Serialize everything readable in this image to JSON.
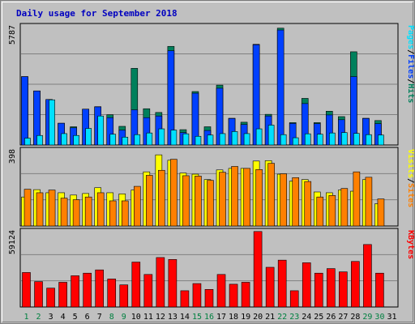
{
  "chart_title": "Daily usage for September 2018",
  "colors": {
    "background": "#c0c0c0",
    "panel": "#c0c0c0",
    "grid": "#808080",
    "hits": "#00805c",
    "files": "#0040ff",
    "pages": "#00e0ff",
    "visits": "#ffff00",
    "sites": "#ff8000",
    "kbytes": "#ff0000",
    "weekday": "#000000",
    "weekend": "#008040"
  },
  "chart_data": [
    {
      "type": "bar",
      "panel": "top",
      "ymax_label": "5787",
      "ylim": [
        0,
        5787
      ],
      "categories": [
        "1",
        "2",
        "3",
        "4",
        "5",
        "6",
        "7",
        "8",
        "9",
        "10",
        "11",
        "12",
        "13",
        "14",
        "15",
        "16",
        "17",
        "18",
        "19",
        "20",
        "21",
        "22",
        "23",
        "24",
        "25",
        "26",
        "27",
        "28",
        "29",
        "30",
        "31"
      ],
      "series": [
        {
          "name": "Hits",
          "values": [
            3300,
            2610,
            2150,
            1050,
            880,
            1730,
            1850,
            1460,
            900,
            3700,
            1750,
            1570,
            4760,
            740,
            2580,
            880,
            2890,
            1290,
            1100,
            4860,
            1480,
            5640,
            1080,
            2250,
            1080,
            1630,
            1370,
            4500,
            1290,
            1180,
            0
          ]
        },
        {
          "name": "Files",
          "values": [
            3300,
            2610,
            2200,
            1050,
            830,
            1730,
            1840,
            1320,
            720,
            1700,
            1320,
            1400,
            4550,
            600,
            2500,
            700,
            2740,
            1280,
            990,
            4840,
            1400,
            5550,
            1040,
            2000,
            1030,
            1450,
            1220,
            3300,
            1280,
            1030,
            0
          ]
        },
        {
          "name": "Pages",
          "values": [
            330,
            460,
            2180,
            550,
            460,
            800,
            1400,
            520,
            380,
            500,
            580,
            780,
            720,
            540,
            420,
            480,
            550,
            650,
            550,
            780,
            960,
            500,
            350,
            540,
            520,
            580,
            600,
            560,
            500,
            480,
            0
          ]
        }
      ],
      "legend": [
        {
          "label": "Hits",
          "sep": "/"
        },
        {
          "label": "Files",
          "sep": "/"
        },
        {
          "label": "Pages",
          "sep": ""
        }
      ]
    },
    {
      "type": "bar",
      "panel": "middle",
      "ymax_label": "398",
      "ylim": [
        0,
        398
      ],
      "categories": [
        "1",
        "2",
        "3",
        "4",
        "5",
        "6",
        "7",
        "8",
        "9",
        "10",
        "11",
        "12",
        "13",
        "14",
        "15",
        "16",
        "17",
        "18",
        "19",
        "20",
        "21",
        "22",
        "23",
        "24",
        "25",
        "26",
        "27",
        "28",
        "29",
        "30",
        "31"
      ],
      "series": [
        {
          "name": "Visits",
          "values": [
            150,
            188,
            172,
            172,
            160,
            168,
            198,
            172,
            166,
            186,
            280,
            368,
            340,
            274,
            268,
            240,
            290,
            298,
            298,
            336,
            338,
            268,
            232,
            240,
            176,
            172,
            186,
            180,
            240,
            115,
            0
          ]
        },
        {
          "name": "Sites",
          "values": [
            190,
            172,
            186,
            144,
            136,
            150,
            172,
            130,
            130,
            205,
            262,
            288,
            345,
            260,
            258,
            236,
            278,
            308,
            298,
            292,
            324,
            270,
            250,
            230,
            150,
            158,
            194,
            280,
            252,
            140,
            0
          ]
        }
      ],
      "legend": [
        {
          "label": "Sites",
          "sep": "/"
        },
        {
          "label": "Visits",
          "sep": ""
        }
      ]
    },
    {
      "type": "bar",
      "panel": "bottom",
      "ymax_label": "59124",
      "ylim": [
        0,
        59124
      ],
      "categories": [
        "1",
        "2",
        "3",
        "4",
        "5",
        "6",
        "7",
        "8",
        "9",
        "10",
        "11",
        "12",
        "13",
        "14",
        "15",
        "16",
        "17",
        "18",
        "19",
        "20",
        "21",
        "22",
        "23",
        "24",
        "25",
        "26",
        "27",
        "28",
        "29",
        "30",
        "31"
      ],
      "series": [
        {
          "name": "KBytes",
          "values": [
            26500,
            19500,
            14500,
            19000,
            24000,
            26000,
            28500,
            21500,
            17000,
            34500,
            25000,
            38000,
            36500,
            12500,
            18000,
            13500,
            25000,
            17500,
            19000,
            58000,
            30500,
            36000,
            12500,
            34000,
            26000,
            29500,
            27000,
            35000,
            48000,
            26000,
            0
          ]
        }
      ],
      "legend": [
        {
          "label": "KBytes",
          "sep": ""
        }
      ]
    }
  ],
  "x_labels": [
    {
      "label": "1",
      "weekend": true
    },
    {
      "label": "2",
      "weekend": true
    },
    {
      "label": "3",
      "weekend": false
    },
    {
      "label": "4",
      "weekend": false
    },
    {
      "label": "5",
      "weekend": false
    },
    {
      "label": "6",
      "weekend": false
    },
    {
      "label": "7",
      "weekend": false
    },
    {
      "label": "8",
      "weekend": true
    },
    {
      "label": "9",
      "weekend": true
    },
    {
      "label": "10",
      "weekend": false
    },
    {
      "label": "11",
      "weekend": false
    },
    {
      "label": "12",
      "weekend": false
    },
    {
      "label": "13",
      "weekend": false
    },
    {
      "label": "14",
      "weekend": false
    },
    {
      "label": "15",
      "weekend": true
    },
    {
      "label": "16",
      "weekend": true
    },
    {
      "label": "17",
      "weekend": false
    },
    {
      "label": "18",
      "weekend": false
    },
    {
      "label": "19",
      "weekend": false
    },
    {
      "label": "20",
      "weekend": false
    },
    {
      "label": "21",
      "weekend": false
    },
    {
      "label": "22",
      "weekend": true
    },
    {
      "label": "23",
      "weekend": true
    },
    {
      "label": "24",
      "weekend": false
    },
    {
      "label": "25",
      "weekend": false
    },
    {
      "label": "26",
      "weekend": false
    },
    {
      "label": "27",
      "weekend": false
    },
    {
      "label": "28",
      "weekend": false
    },
    {
      "label": "29",
      "weekend": true
    },
    {
      "label": "30",
      "weekend": true
    },
    {
      "label": "31",
      "weekend": false
    }
  ]
}
